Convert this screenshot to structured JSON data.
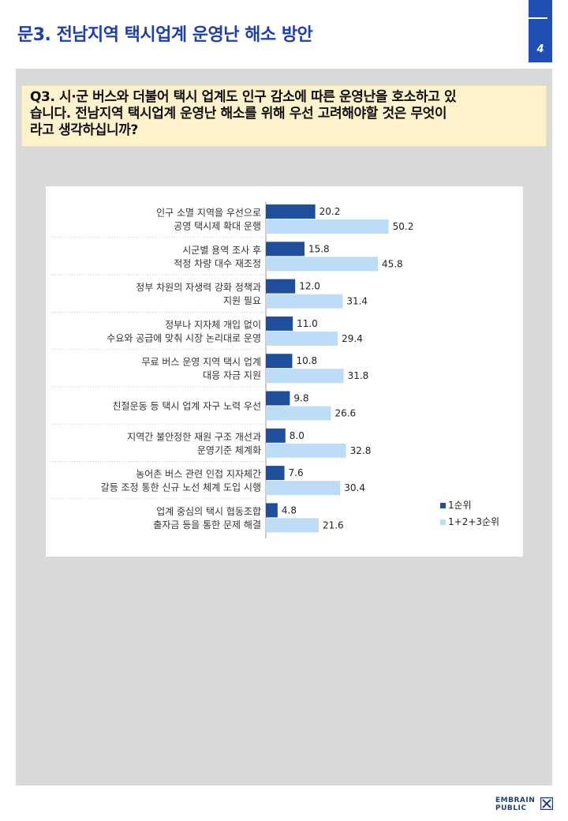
{
  "header": {
    "title": "문3. 전남지역 택시업계 운영난 해소 방안",
    "page_number": "4"
  },
  "question": {
    "text": "Q3. 시·군 버스와 더불어 택시 업계도 인구 감소에 따른 운영난을 호소하고 있습니다. 전남지역 택시업계 운영난 해소를 위해 우선 고려해야할 것은 무엇이라고 생각하십니까?",
    "line1": "Q3. 시·군 버스와 더불어 택시 업계도 인구 감소에 따른 운영난을 호소하고 있",
    "line2": "습니다. 전남지역 택시업계 운영난 해소를 위해 우선 고려해야할 것은 무엇이",
    "line3": "라고 생각하십니까?"
  },
  "chart_data": {
    "type": "bar",
    "orientation": "horizontal",
    "categories": [
      [
        "인구 소멸 지역을 우선으로",
        "공영 택시제 확대 운행"
      ],
      [
        "시군별 용역 조사 후",
        "적정 차량 대수 재조정"
      ],
      [
        "정부 차원의 자생력 강화 정책과",
        "지원 필요"
      ],
      [
        "정부나 지자체 개입 없이",
        "수요와 공급에 맞춰 시장 논리대로 운영"
      ],
      [
        "무료 버스 운영 지역 택시 업계",
        "대응 자금 지원"
      ],
      [
        "친절운동 등 택시 업계 자구 노력 우선"
      ],
      [
        "지역간 불안정한 재원 구조 개선과",
        "운영기준 체계화"
      ],
      [
        "농어촌 버스 관련 인접 지자체간",
        "갈등 조정 통한 신규 노선 체계 도입 시행"
      ],
      [
        "업계 중심의 택시 협동조합",
        "출자금 등을 통한 문제 해결"
      ]
    ],
    "series": [
      {
        "name": "1순위",
        "color": "#1f4e9c",
        "values": [
          20.2,
          15.8,
          12.0,
          11.0,
          10.8,
          9.8,
          8.0,
          7.6,
          4.8
        ],
        "labels": [
          "20.2",
          "15.8",
          "12.0",
          "11.0",
          "10.8",
          "9.8",
          "8.0",
          "7.6",
          "4.8"
        ]
      },
      {
        "name": "1+2+3순위",
        "color": "#bcdcf8",
        "values": [
          50.2,
          45.8,
          31.4,
          29.4,
          31.8,
          26.6,
          32.8,
          30.4,
          21.6
        ],
        "labels": [
          "50.2",
          "45.8",
          "31.4",
          "29.4",
          "31.8",
          "26.6",
          "32.8",
          "30.4",
          "21.6"
        ]
      }
    ],
    "xlim": [
      0,
      60
    ],
    "title": "",
    "xlabel": "",
    "ylabel": "",
    "legend": "bottom-right",
    "grid": false
  },
  "footer": {
    "logo_line1": "EMBRAIN",
    "logo_line2": "PUBLIC"
  }
}
